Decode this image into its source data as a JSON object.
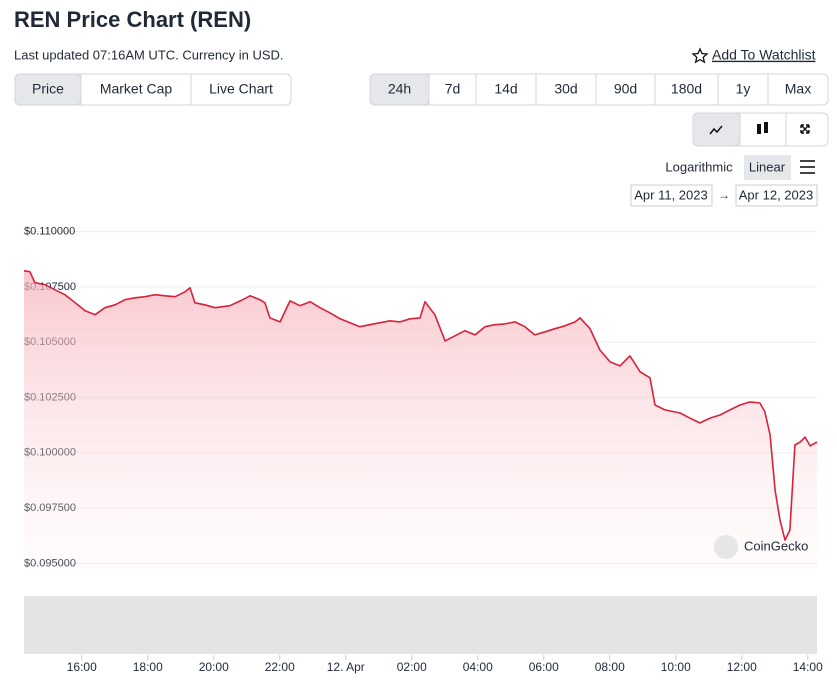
{
  "header": {
    "title": "REN Price Chart (REN)",
    "subtitle": "Last updated 07:16AM UTC. Currency in USD.",
    "watchlist": "Add To Watchlist"
  },
  "tabs": [
    "Price",
    "Market Cap",
    "Live Chart"
  ],
  "ranges": [
    "24h",
    "7d",
    "14d",
    "30d",
    "90d",
    "180d",
    "1y",
    "Max"
  ],
  "scale_options": [
    "Logarithmic",
    "Linear"
  ],
  "date_range": {
    "from": "Apr 11, 2023",
    "arrow": "→",
    "to": "Apr 12, 2023"
  },
  "watermark": "CoinGecko",
  "chart_data": {
    "type": "line",
    "x": [
      14.25,
      14.43,
      14.58,
      14.89,
      15.19,
      15.49,
      15.8,
      16.1,
      16.4,
      16.7,
      17.01,
      17.31,
      17.61,
      17.92,
      18.22,
      18.52,
      18.83,
      19.13,
      19.28,
      19.43,
      19.73,
      20.04,
      20.49,
      20.8,
      21.1,
      21.4,
      21.55,
      21.7,
      22.01,
      22.31,
      22.61,
      22.92,
      23.22,
      23.52,
      23.83,
      24.13,
      24.43,
      24.73,
      25.04,
      25.34,
      25.64,
      25.95,
      26.25,
      26.4,
      26.7,
      27.01,
      27.31,
      27.61,
      27.92,
      28.22,
      28.52,
      28.83,
      29.13,
      29.43,
      29.73,
      30.04,
      30.34,
      30.64,
      30.95,
      31.1,
      31.4,
      31.7,
      32.01,
      32.31,
      32.61,
      32.92,
      33.22,
      33.37,
      33.67,
      34.13,
      34.43,
      34.73,
      35.04,
      35.34,
      35.64,
      35.95,
      36.25,
      36.55,
      36.7,
      36.86,
      37.01,
      37.16,
      37.31,
      37.46,
      37.61,
      37.77,
      37.92,
      38.07,
      38.28
    ],
    "series": [
      {
        "name": "Price",
        "color": "#d9213a",
        "values": [
          0.10823,
          0.10819,
          0.10769,
          0.1076,
          0.10737,
          0.10715,
          0.10678,
          0.10642,
          0.10624,
          0.10656,
          0.10669,
          0.10692,
          0.10701,
          0.10706,
          0.10715,
          0.1071,
          0.10706,
          0.10728,
          0.10746,
          0.10678,
          0.10669,
          0.10656,
          0.10665,
          0.10687,
          0.1071,
          0.10692,
          0.10678,
          0.1061,
          0.10592,
          0.10687,
          0.10665,
          0.10683,
          0.10656,
          0.10633,
          0.10606,
          0.10588,
          0.1057,
          0.10579,
          0.10588,
          0.10597,
          0.10592,
          0.10606,
          0.1061,
          0.10683,
          0.10624,
          0.10506,
          0.10529,
          0.10552,
          0.10533,
          0.1057,
          0.10579,
          0.10583,
          0.10592,
          0.1057,
          0.10533,
          0.10547,
          0.10561,
          0.10574,
          0.10592,
          0.1061,
          0.10561,
          0.10465,
          0.10411,
          0.10393,
          0.10438,
          0.10366,
          0.10339,
          0.10216,
          0.10194,
          0.1018,
          0.10157,
          0.10135,
          0.10157,
          0.10171,
          0.10194,
          0.10216,
          0.1023,
          0.10225,
          0.10185,
          0.1008,
          0.09831,
          0.09695,
          0.09605,
          0.0965,
          0.10035,
          0.10049,
          0.10071,
          0.10031,
          0.10049
        ]
      }
    ],
    "xlim": [
      14.25,
      38.28
    ],
    "xticks": [
      {
        "value": 16,
        "label": "16:00"
      },
      {
        "value": 18,
        "label": "18:00"
      },
      {
        "value": 20,
        "label": "20:00"
      },
      {
        "value": 22,
        "label": "22:00"
      },
      {
        "value": 24,
        "label": "12. Apr"
      },
      {
        "value": 26,
        "label": "02:00"
      },
      {
        "value": 28,
        "label": "04:00"
      },
      {
        "value": 30,
        "label": "06:00"
      },
      {
        "value": 32,
        "label": "08:00"
      },
      {
        "value": 34,
        "label": "10:00"
      },
      {
        "value": 36,
        "label": "12:00"
      },
      {
        "value": 38,
        "label": "14:00"
      }
    ],
    "ylim": [
      0.0947,
      0.1103
    ],
    "yticks": [
      {
        "value": 0.095,
        "label": "$0.095000"
      },
      {
        "value": 0.0975,
        "label": "$0.097500"
      },
      {
        "value": 0.1,
        "label": "$0.100000"
      },
      {
        "value": 0.1025,
        "label": "$0.102500"
      },
      {
        "value": 0.105,
        "label": "$0.105000"
      },
      {
        "value": 0.1075,
        "label": "$0.107500"
      },
      {
        "value": 0.11,
        "label": "$0.110000"
      }
    ],
    "grid": true
  }
}
